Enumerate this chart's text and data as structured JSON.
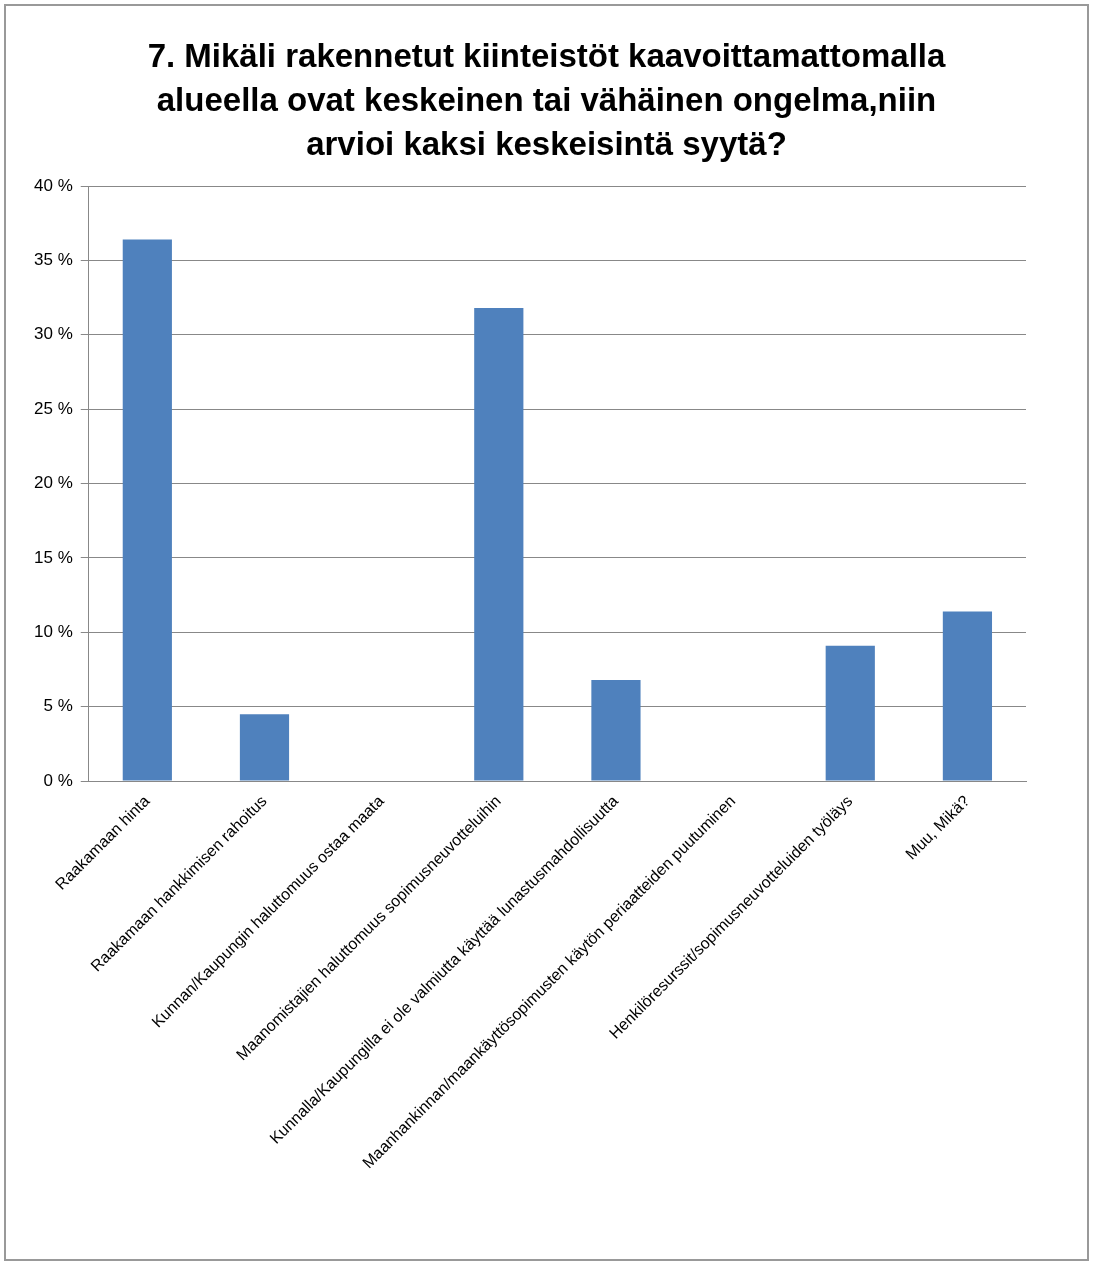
{
  "chart_data": {
    "type": "bar",
    "title": "7. Mikäli rakennetut kiinteistöt kaavoittamattomalla alueella ovat keskeinen tai vähäinen ongelma,niin arvioi kaksi keskeisintä syytä?",
    "categories": [
      "Raakamaan hinta",
      "Raakamaan hankkimisen rahoitus",
      "Kunnan/Kaupungin haluttomuus ostaa maata",
      "Maanomistajien haluttomuus sopimusneuvotteluihin",
      "Kunnalla/Kaupungilla ei ole valmiutta käyttää lunastusmahdollisuutta",
      "Maanhankinnan/maankäyttösopimusten käytön periaatteiden puutuminen",
      "Henkilöresurssit/sopimusneuvotteluiden työläys",
      "Muu, Mikä?"
    ],
    "values": [
      36.4,
      4.5,
      0,
      31.8,
      6.8,
      0,
      9.1,
      11.4
    ],
    "color": "#4f81bd",
    "ylim": [
      0,
      40
    ],
    "yticks": [
      {
        "value": 0,
        "label": "0 %"
      },
      {
        "value": 5,
        "label": "5 %"
      },
      {
        "value": 10,
        "label": "10 %"
      },
      {
        "value": 15,
        "label": "15 %"
      },
      {
        "value": 20,
        "label": "20 %"
      },
      {
        "value": 25,
        "label": "25 %"
      },
      {
        "value": 30,
        "label": "30 %"
      },
      {
        "value": 35,
        "label": "35 %"
      },
      {
        "value": 40,
        "label": "40 %"
      }
    ],
    "grid": "y",
    "legend": false
  }
}
